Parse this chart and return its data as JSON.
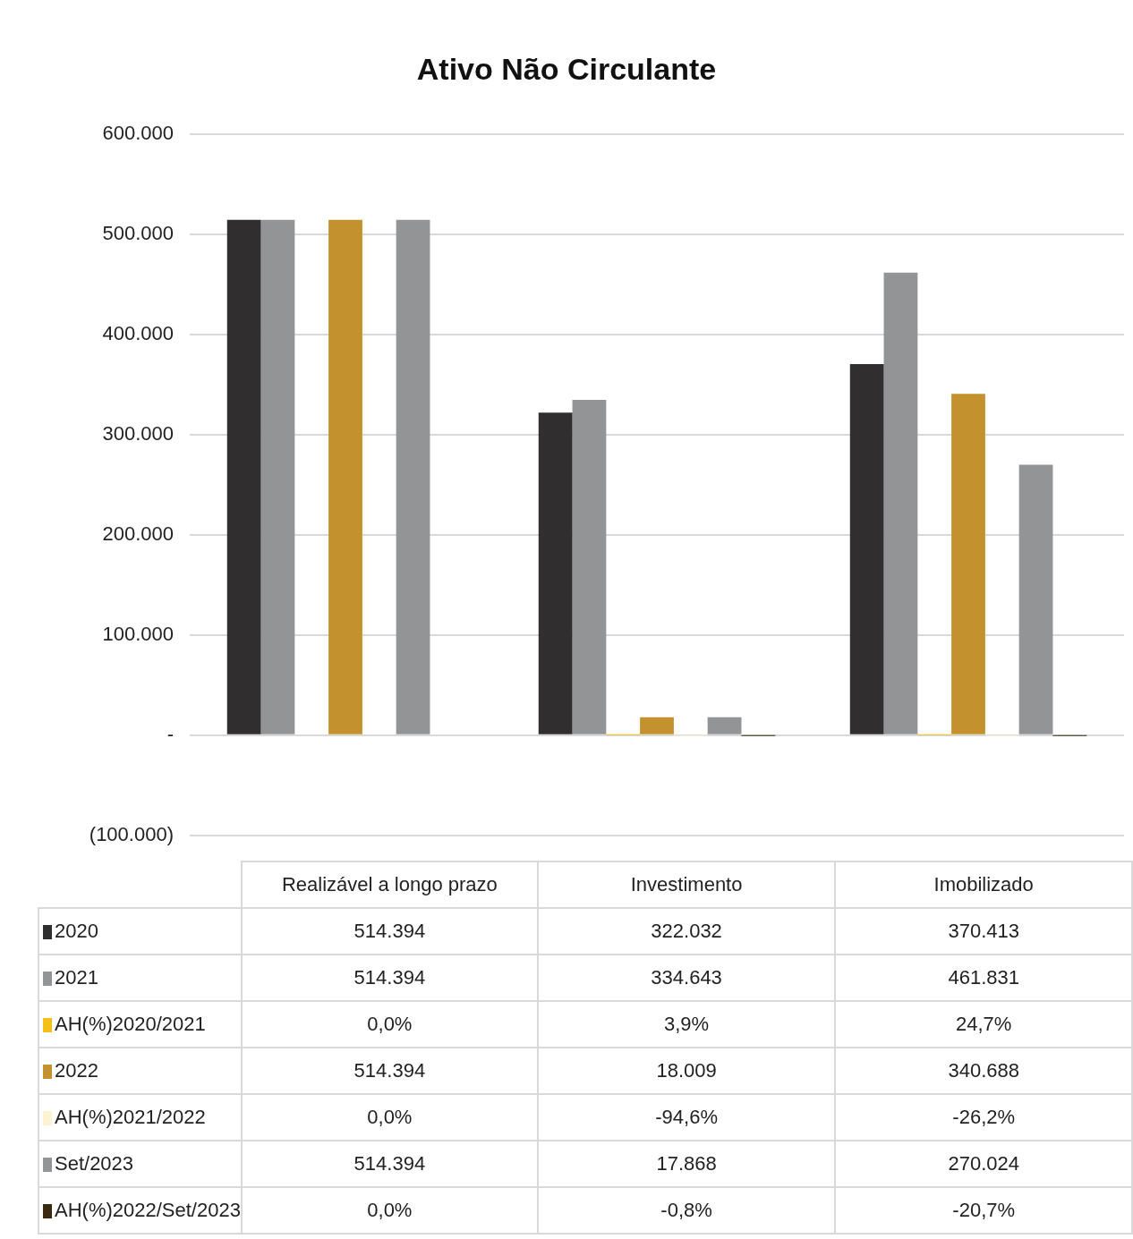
{
  "chart_data": {
    "type": "bar",
    "title": "Ativo Não Circulante",
    "categories": [
      "Realizável a longo prazo",
      "Investimento",
      "Imobilizado"
    ],
    "series": [
      {
        "name": "2020",
        "color": "#302e2f",
        "values": [
          514394,
          322032,
          370413
        ],
        "value_labels": [
          "514.394",
          "322.032",
          "370.413"
        ]
      },
      {
        "name": "2021",
        "color": "#939496",
        "values": [
          514394,
          334643,
          461831
        ],
        "value_labels": [
          "514.394",
          "334.643",
          "461.831"
        ]
      },
      {
        "name": "AH(%)2020/2021",
        "color": "#f5bf1a",
        "values": [
          0,
          0.039,
          0.247
        ],
        "value_labels": [
          "0,0%",
          "3,9%",
          "24,7%"
        ]
      },
      {
        "name": "2022",
        "color": "#c3922e",
        "values": [
          514394,
          18009,
          340688
        ],
        "value_labels": [
          "514.394",
          "18.009",
          "340.688"
        ]
      },
      {
        "name": "AH(%)2021/2022",
        "color": "#fdf3d0",
        "values": [
          0,
          -0.946,
          -0.262
        ],
        "value_labels": [
          "0,0%",
          "-94,6%",
          "-26,2%"
        ]
      },
      {
        "name": "Set/2023",
        "color": "#939496",
        "values": [
          514394,
          17868,
          270024
        ],
        "value_labels": [
          "514.394",
          "17.868",
          "270.024"
        ]
      },
      {
        "name": "AH(%)2022/Set/2023",
        "color": "#3a2a12",
        "values": [
          0,
          -0.008,
          -0.207
        ],
        "value_labels": [
          "0,0%",
          "-0,8%",
          "-20,7%"
        ]
      }
    ],
    "ylim": [
      -100000,
      600000
    ],
    "yticks": [
      {
        "value": -100000,
        "label": "(100.000)"
      },
      {
        "value": 0,
        "label": "-"
      },
      {
        "value": 100000,
        "label": "100.000"
      },
      {
        "value": 200000,
        "label": "200.000"
      },
      {
        "value": 300000,
        "label": "300.000"
      },
      {
        "value": 400000,
        "label": "400.000"
      },
      {
        "value": 500000,
        "label": "500.000"
      },
      {
        "value": 600000,
        "label": "600.000"
      }
    ],
    "grid": "y",
    "legend": "bottom"
  }
}
